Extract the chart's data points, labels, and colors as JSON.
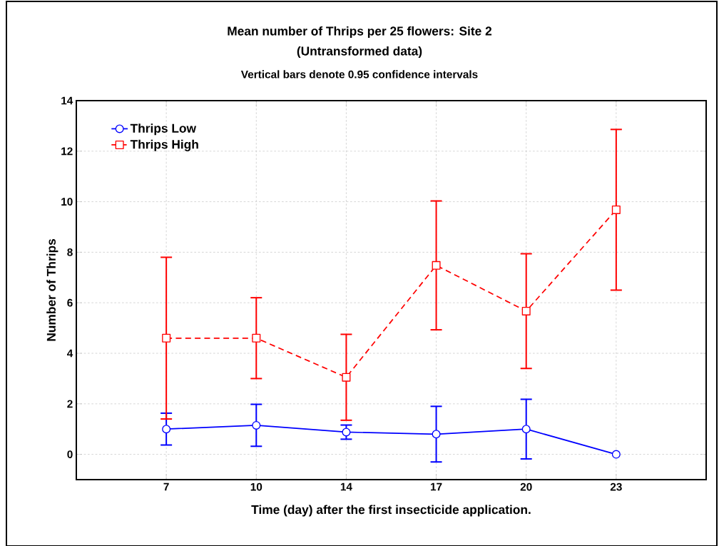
{
  "chart_data": {
    "type": "line",
    "title": "Mean number of Thrips per 25 flowers: Site 2",
    "subtitle": "(Untransformed data)",
    "annotations": [
      "Vertical bars denote 0.95 confidence intervals"
    ],
    "xlabel": "Time (day) after the first insecticide application.",
    "ylabel": "Number of Thrips",
    "categories": [
      "7",
      "10",
      "14",
      "17",
      "20",
      "23"
    ],
    "ylim": [
      -1,
      14
    ],
    "yticks": [
      0,
      2,
      4,
      6,
      8,
      10,
      12,
      14
    ],
    "grid": true,
    "legend": "top left",
    "series": [
      {
        "name": "Thrips Low",
        "color": "#0000ff",
        "marker": "circle",
        "line_style": "solid",
        "values": [
          1.0,
          1.15,
          0.88,
          0.8,
          1.0,
          0.0
        ],
        "errors": [
          0.63,
          0.83,
          0.28,
          1.1,
          1.18,
          null
        ]
      },
      {
        "name": "Thrips High",
        "color": "#ff0000",
        "marker": "square",
        "line_style": "dashed",
        "values": [
          4.6,
          4.6,
          3.05,
          7.48,
          5.67,
          9.68
        ],
        "errors": [
          3.2,
          1.6,
          1.7,
          2.55,
          2.27,
          3.18
        ]
      }
    ]
  }
}
